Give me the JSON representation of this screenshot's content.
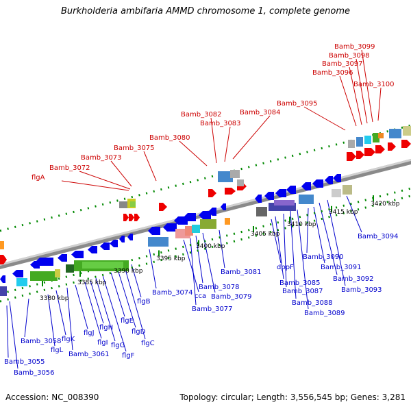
{
  "title": "Burkholderia ambifaria AMMD chromosome 1, complete genome",
  "footer": {
    "accession": "Accession: NC_008390",
    "topology": "Topology: circular; Length: 3,556,545 bp; Genes: 3,281"
  },
  "colors": {
    "upper_label": "#cc0000",
    "lower_label": "#0000cc",
    "forward_gene": "#ee0000",
    "reverse_gene": "#0000ee",
    "scale_tick": "#008800",
    "chromosome": "#8a8a8a"
  },
  "scale_ticks": [
    "3380 kbp",
    "3385 kbp",
    "3390 kbp",
    "3395 kbp",
    "3400 kbp",
    "3405 kbp",
    "3410 kbp",
    "3415 kbp",
    "3420 kbp"
  ],
  "upper_labels": [
    "flgA",
    "Bamb_3072",
    "Bamb_3073",
    "Bamb_3075",
    "Bamb_3080",
    "Bamb_3082",
    "Bamb_3083",
    "Bamb_3084",
    "Bamb_3095",
    "Bamb_3096",
    "Bamb_3097",
    "Bamb_3098",
    "Bamb_3099",
    "Bamb_3100"
  ],
  "lower_labels": [
    "Bamb_3055",
    "Bamb_3056",
    "Bamb_3058",
    "flgL",
    "flgK",
    "Bamb_3061",
    "flgJ",
    "flgI",
    "flgH",
    "flgG",
    "flgF",
    "flgE",
    "flgD",
    "flgC",
    "flgB",
    "Bamb_3074",
    "cca",
    "Bamb_3077",
    "Bamb_3078",
    "Bamb_3079",
    "Bamb_3081",
    "dppF",
    "Bamb_3085",
    "Bamb_3087",
    "Bamb_3088",
    "Bamb_3089",
    "Bamb_3090",
    "Bamb_3091",
    "Bamb_3092",
    "Bamb_3093",
    "Bamb_3094"
  ]
}
